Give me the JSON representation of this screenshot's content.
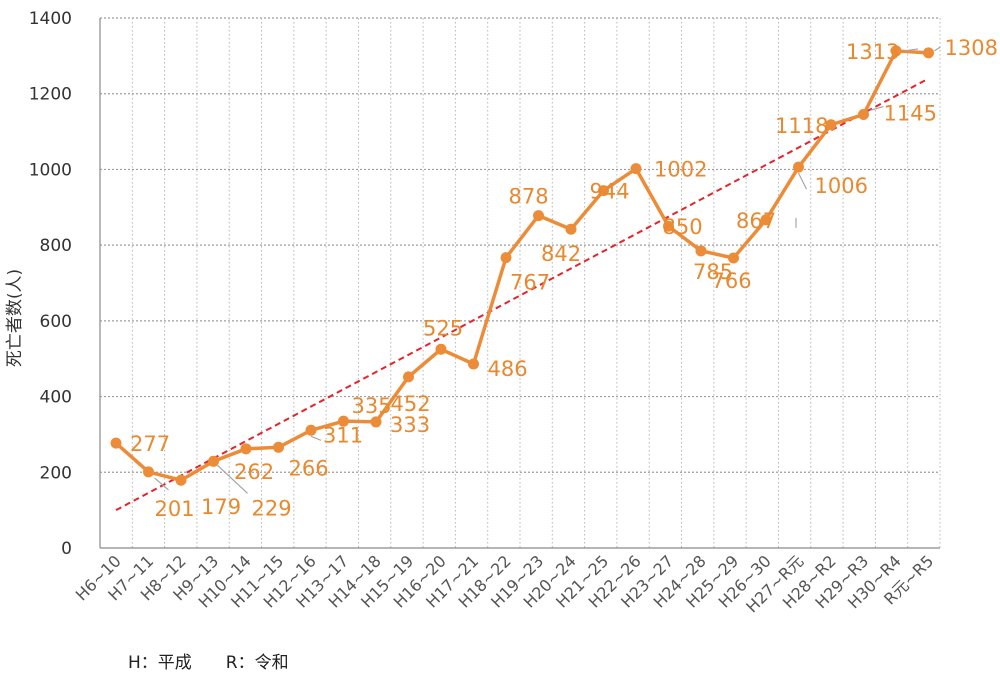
{
  "chart_data": {
    "type": "line",
    "title": "",
    "xlabel": "",
    "ylabel": "死亡者数(人)",
    "ylim": [
      0,
      1400
    ],
    "yticks": [
      0,
      200,
      400,
      600,
      800,
      1000,
      1200,
      1400
    ],
    "grid": true,
    "legend": "none",
    "categories": [
      "H6~10",
      "H7~11",
      "H8~12",
      "H9~13",
      "H10~14",
      "H11~15",
      "H12~16",
      "H13~17",
      "H14~18",
      "H15~19",
      "H16~20",
      "H17~21",
      "H18~22",
      "H19~23",
      "H20~24",
      "H21~25",
      "H22~26",
      "H23~27",
      "H24~28",
      "H25~29",
      "H26~30",
      "H27~R元",
      "H28~R2",
      "H29~R3",
      "H30~R4",
      "R元~R5"
    ],
    "series": [
      {
        "values": [
          277,
          201,
          179,
          229,
          262,
          266,
          311,
          335,
          333,
          452,
          525,
          486,
          767,
          878,
          842,
          944,
          1002,
          850,
          785,
          766,
          867,
          1006,
          1118,
          1145,
          1313,
          1308
        ]
      }
    ],
    "trendline": {
      "style": "dashed",
      "from": 100,
      "to": 1240
    },
    "colors": {
      "series": "#ED8C38",
      "label": "#E8892F",
      "trend": "#E8222A",
      "grid": "#9e9e9e"
    },
    "note": "H：平成　　R：令和"
  }
}
